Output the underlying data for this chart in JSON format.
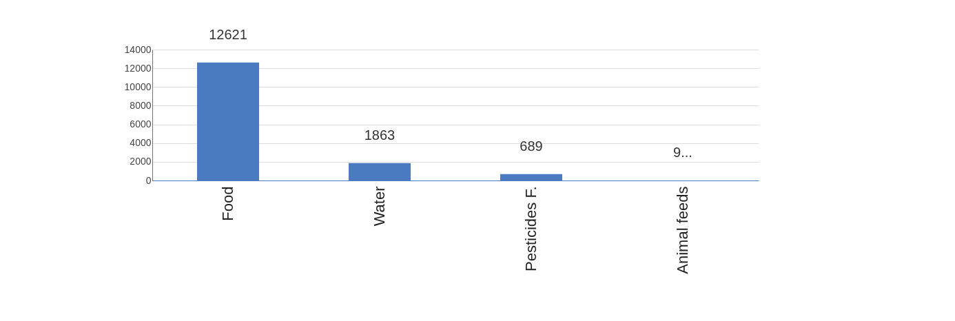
{
  "chart_data": {
    "type": "bar",
    "categories": [
      "Food",
      "Water",
      "Pesticides F.",
      "Animal feeds"
    ],
    "values": [
      12621,
      1863,
      689,
      9
    ],
    "value_labels": [
      "12621",
      "1863",
      "689",
      "9..."
    ],
    "color": "#4a7bc0",
    "ylim": [
      0,
      14000
    ],
    "yticks": [
      0,
      2000,
      4000,
      6000,
      8000,
      10000,
      12000,
      14000
    ],
    "grid": "y"
  }
}
